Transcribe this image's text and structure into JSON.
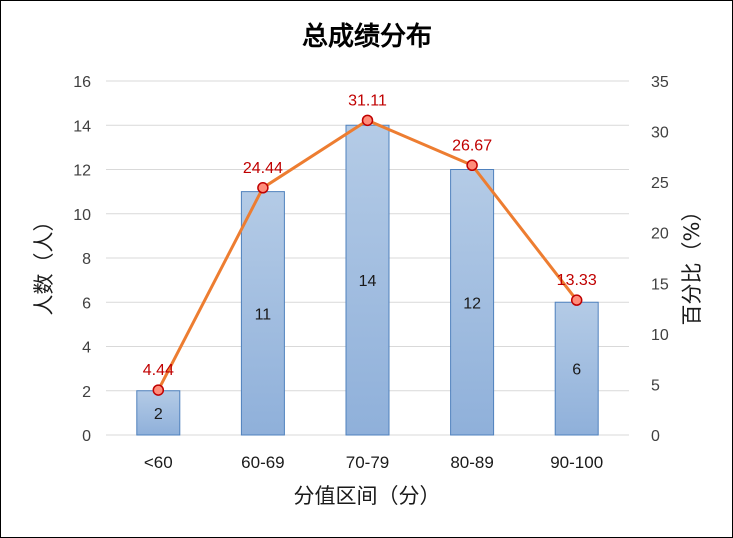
{
  "chart_data": {
    "type": "bar",
    "title": "总成绩分布",
    "xlabel": "分值区间（分）",
    "ylabel": "人数（人）",
    "y2label": "百分比（%）",
    "categories": [
      "<60",
      "60-69",
      "70-79",
      "80-89",
      "90-100"
    ],
    "series": [
      {
        "type": "bar",
        "axis": "left",
        "values": [
          2,
          11,
          14,
          12,
          6
        ]
      },
      {
        "type": "line",
        "axis": "right",
        "values": [
          4.44,
          24.44,
          31.11,
          26.67,
          13.33
        ],
        "labels": [
          "4.44",
          "24.44",
          "31.11",
          "26.67",
          "13.33"
        ]
      }
    ],
    "ylim": [
      0,
      16
    ],
    "yticks": [
      0,
      2,
      4,
      6,
      8,
      10,
      12,
      14,
      16
    ],
    "y2lim": [
      0,
      35
    ],
    "y2ticks": [
      0,
      5,
      10,
      15,
      20,
      25,
      30,
      35
    ],
    "grid": true,
    "colors": {
      "bar_top": "#b4cbe6",
      "bar_bottom": "#8fb0da",
      "bar_border": "#4f81bd",
      "line": "#ed7d31",
      "marker_fill": "#ff8c7a",
      "marker_border": "#c00000",
      "pct_label": "#c00000",
      "grid": "#d9d9d9"
    }
  }
}
